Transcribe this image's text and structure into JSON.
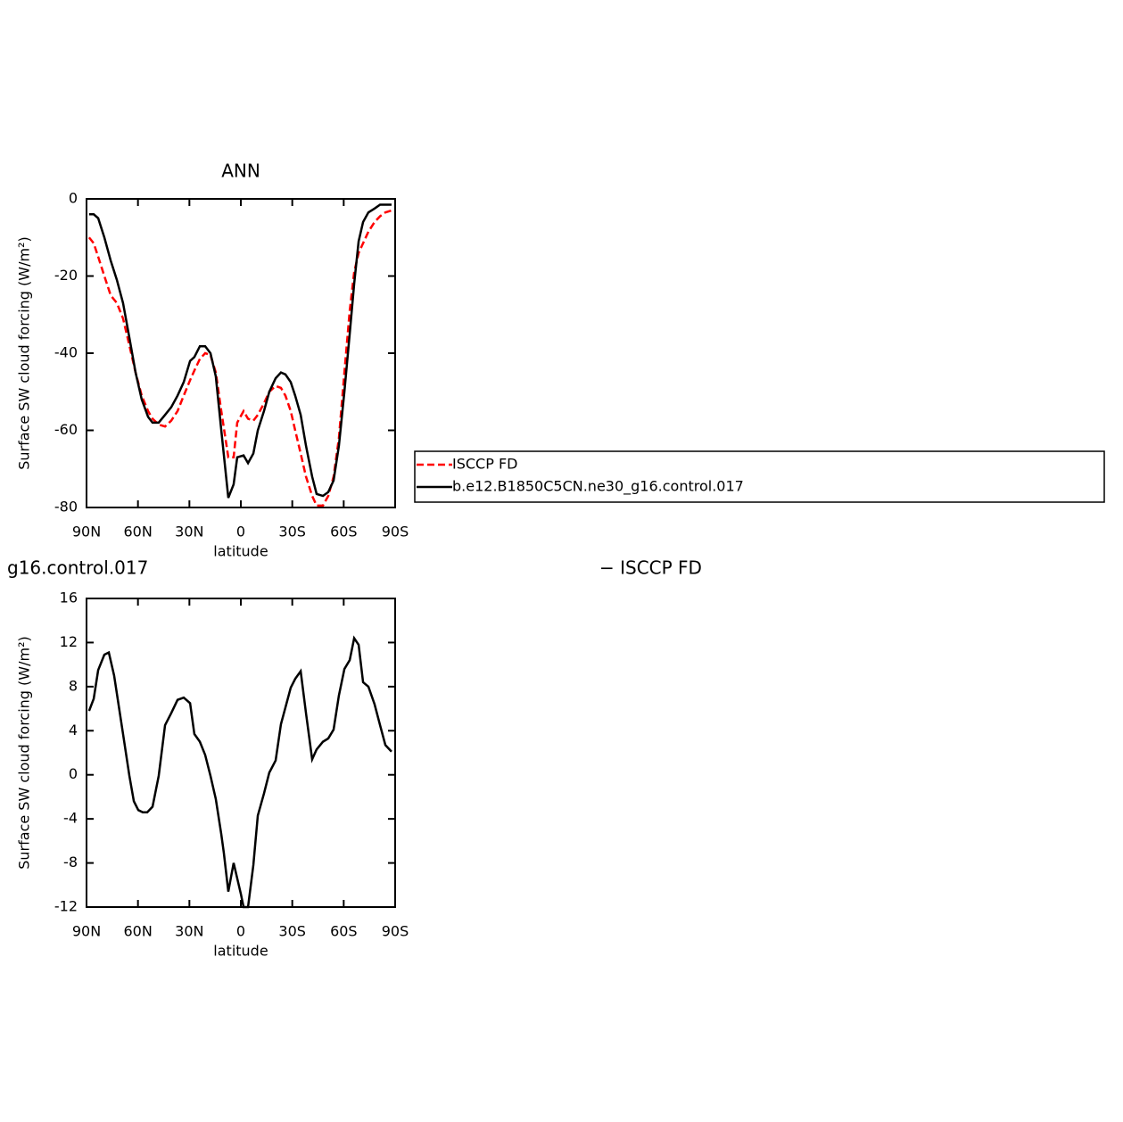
{
  "chart_data": [
    {
      "type": "line",
      "title": "ANN",
      "xlabel": "latitude",
      "ylabel": "Surface SW cloud forcing (W/m²)",
      "x": [
        -88.5,
        -85.8,
        -83.2,
        -79.6,
        -75.9,
        -72.3,
        -68.7,
        -65.0,
        -61.4,
        -57.8,
        -54.1,
        -51.5,
        -47.9,
        -44.2,
        -40.6,
        -36.9,
        -33.3,
        -29.6,
        -27.1,
        -23.9,
        -20.8,
        -17.7,
        -14.6,
        -11.4,
        -7.3,
        -4.2,
        -2.1,
        1.6,
        4.2,
        7.3,
        9.9,
        13.5,
        16.6,
        20.3,
        23.4,
        26.0,
        29.1,
        31.7,
        34.9,
        38.0,
        41.6,
        44.2,
        47.9,
        51.0,
        54.1,
        57.2,
        60.4,
        63.5,
        66.1,
        68.7,
        71.3,
        74.4,
        78.0,
        81.2,
        84.3,
        87.9
      ],
      "series": [
        {
          "name": "ISCCP FD",
          "color": "#ff0000",
          "style": "dashed",
          "values": [
            -10,
            -11.5,
            -15,
            -20,
            -25,
            -27,
            -31,
            -38,
            -45,
            -51,
            -55,
            -57,
            -58.5,
            -59,
            -57.5,
            -55,
            -51,
            -47,
            -44.5,
            -41.5,
            -40,
            -40.5,
            -45,
            -55,
            -67,
            -67,
            -58,
            -55,
            -57,
            -57.5,
            -56,
            -53,
            -50,
            -48.5,
            -49,
            -51,
            -55,
            -60,
            -66,
            -72,
            -77,
            -79.5,
            -79.5,
            -77,
            -72,
            -62,
            -45,
            -29,
            -19,
            -14,
            -11.5,
            -8.5,
            -6,
            -4.5,
            -3.5,
            -3
          ]
        },
        {
          "name": "b.e12.B1850C5CN.ne30_g16.control.017",
          "color": "#000000",
          "style": "solid",
          "values": [
            -4,
            -4,
            -5,
            -10,
            -16,
            -21,
            -27,
            -36,
            -45,
            -52,
            -56.5,
            -58,
            -58,
            -56,
            -54,
            -51,
            -47.5,
            -42,
            -41,
            -38.2,
            -38.2,
            -40,
            -46,
            -60,
            -77.5,
            -74,
            -67,
            -66.5,
            -68.5,
            -66,
            -60,
            -55,
            -50,
            -46.5,
            -45,
            -45.5,
            -47.5,
            -51,
            -56,
            -64,
            -72,
            -76.5,
            -77,
            -76,
            -73,
            -64,
            -50,
            -35,
            -22,
            -11,
            -6,
            -3.5,
            -2.5,
            -1.5,
            -1.5,
            -1.5
          ]
        }
      ],
      "xlim": [
        -90,
        90
      ],
      "xticks": [
        {
          "value": -90,
          "label": "90N"
        },
        {
          "value": -60,
          "label": "60N"
        },
        {
          "value": -30,
          "label": "30N"
        },
        0,
        {
          "value": 30,
          "label": "30S"
        },
        {
          "value": 60,
          "label": "60S"
        },
        {
          "value": 90,
          "label": "90S"
        }
      ],
      "ylim": [
        -80,
        0
      ],
      "yticks": [
        0,
        -20,
        -40,
        -60,
        -80
      ],
      "legend": "right"
    },
    {
      "type": "line",
      "title_left": "g16.control.017",
      "title_right": "− ISCCP FD",
      "xlabel": "latitude",
      "ylabel": "Surface SW cloud forcing (W/m²)",
      "x": [
        -88.5,
        -85.8,
        -83.2,
        -79.6,
        -77.0,
        -73.9,
        -68.7,
        -65.0,
        -62.4,
        -59.8,
        -57.2,
        -54.6,
        -51.5,
        -47.9,
        -44.2,
        -40.6,
        -36.9,
        -33.3,
        -29.6,
        -27.1,
        -23.9,
        -20.8,
        -17.7,
        -14.6,
        -11.4,
        -9.9,
        -7.3,
        -4.2,
        -2.1,
        0,
        1.6,
        4.2,
        7.3,
        9.9,
        13.5,
        16.6,
        20.3,
        23.4,
        26.0,
        29.1,
        31.7,
        34.9,
        38.0,
        41.6,
        44.2,
        47.9,
        51.0,
        54.1,
        57.2,
        60.4,
        63.5,
        66.1,
        68.7,
        71.3,
        74.4,
        78.0,
        81.2,
        84.3,
        87.9
      ],
      "values": [
        5.8,
        6.9,
        9.5,
        10.9,
        11.1,
        9,
        3.7,
        -0.1,
        -2.4,
        -3.2,
        -3.4,
        -3.4,
        -2.9,
        -0.1,
        4.5,
        5.6,
        6.8,
        7.0,
        6.5,
        3.7,
        3,
        1.8,
        -0.1,
        -2.2,
        -5.4,
        -7.1,
        -10.6,
        -8.0,
        -9.4,
        -10.8,
        -12,
        -12,
        -8.2,
        -3.7,
        -1.7,
        0.2,
        1.3,
        4.6,
        6.1,
        7.9,
        8.7,
        9.4,
        5.6,
        1.4,
        2.3,
        3,
        3.3,
        4.1,
        7.2,
        9.6,
        10.4,
        12.4,
        11.8,
        8.4,
        8,
        6.4,
        4.5,
        2.7,
        2.1
      ],
      "color": "#000000",
      "xlim": [
        -90,
        90
      ],
      "xticks": [
        {
          "value": -90,
          "label": "90N"
        },
        {
          "value": -60,
          "label": "60N"
        },
        {
          "value": -30,
          "label": "30N"
        },
        0,
        {
          "value": 30,
          "label": "30S"
        },
        {
          "value": 60,
          "label": "60S"
        },
        {
          "value": 90,
          "label": "90S"
        }
      ],
      "ylim": [
        -12,
        16
      ],
      "yticks": [
        16,
        12,
        8,
        4,
        0,
        -4,
        -8,
        -12
      ]
    }
  ]
}
